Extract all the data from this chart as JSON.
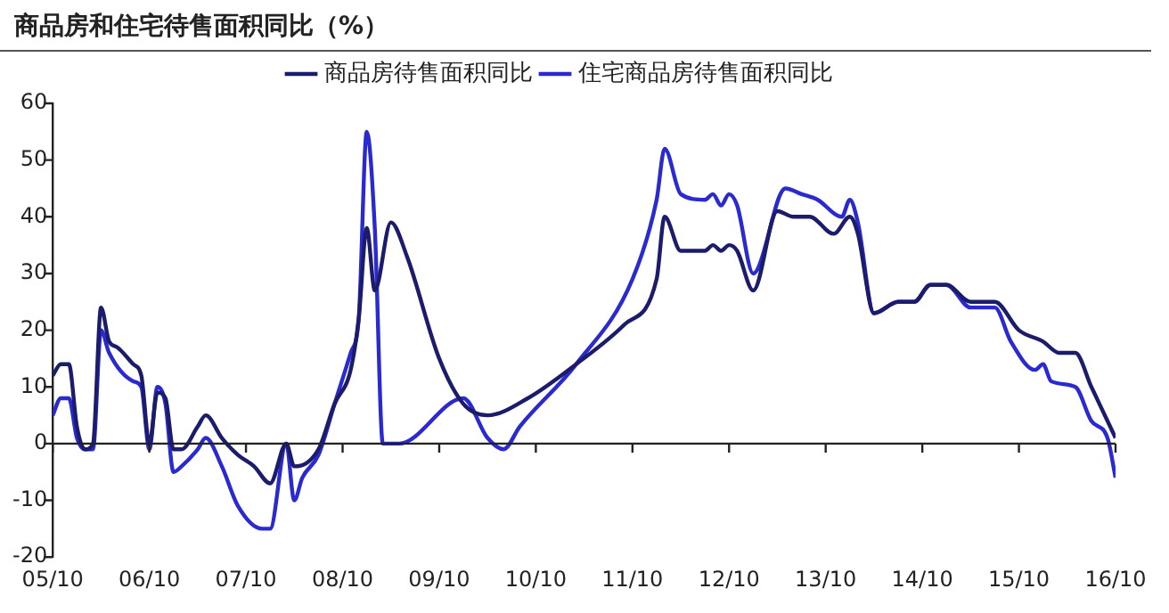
{
  "chart_data": {
    "type": "line",
    "title": "商品房和住宅待售面积同比（%）",
    "xlim": [
      "2005-10",
      "2016-10"
    ],
    "xticks": [
      {
        "value": "2005-10",
        "label": "05/10"
      },
      {
        "value": "2006-10",
        "label": "06/10"
      },
      {
        "value": "2007-10",
        "label": "07/10"
      },
      {
        "value": "2008-10",
        "label": "08/10"
      },
      {
        "value": "2009-10",
        "label": "09/10"
      },
      {
        "value": "2010-10",
        "label": "10/10"
      },
      {
        "value": "2011-10",
        "label": "11/10"
      },
      {
        "value": "2012-10",
        "label": "12/10"
      },
      {
        "value": "2013-10",
        "label": "13/10"
      },
      {
        "value": "2014-10",
        "label": "14/10"
      },
      {
        "value": "2015-10",
        "label": "15/10"
      },
      {
        "value": "2016-10",
        "label": "16/10"
      }
    ],
    "ylim": [
      -20,
      60
    ],
    "yticks": [
      -20,
      -10,
      0,
      10,
      20,
      30,
      40,
      50,
      60
    ],
    "grid": false,
    "ref_lines": [
      {
        "axis": "y",
        "value": 0,
        "color": "#222222",
        "line_style": "solid"
      }
    ],
    "legend": "top",
    "marker": "none",
    "line_style": "solid",
    "series": [
      {
        "name": "商品房待售面积同比",
        "color": "#1c1c6c",
        "x": [
          "2005-10",
          "2005-11",
          "2005-12",
          "2006-01",
          "2006-02",
          "2006-03",
          "2006-04",
          "2006-05",
          "2006-06",
          "2006-08",
          "2006-09",
          "2006-10",
          "2006-11",
          "2006-12",
          "2007-01",
          "2007-02",
          "2007-04",
          "2007-05",
          "2007-07",
          "2007-09",
          "2007-11",
          "2008-01",
          "2008-03",
          "2008-04",
          "2008-07",
          "2008-09",
          "2008-11",
          "2008-12",
          "2009-01",
          "2009-02",
          "2009-04",
          "2009-06",
          "2009-10",
          "2010-01",
          "2010-04",
          "2010-09",
          "2011-03",
          "2011-09",
          "2012-01",
          "2012-02",
          "2012-04",
          "2012-07",
          "2012-08",
          "2012-09",
          "2012-10",
          "2012-11",
          "2013-01",
          "2013-04",
          "2013-06",
          "2013-08",
          "2013-11",
          "2014-01",
          "2014-02",
          "2014-04",
          "2014-07",
          "2014-09",
          "2014-11",
          "2015-01",
          "2015-04",
          "2015-07",
          "2015-10",
          "2016-01",
          "2016-03",
          "2016-05",
          "2016-07",
          "2016-08",
          "2016-10"
        ],
        "values": [
          12,
          14,
          14,
          3,
          -1,
          0,
          24,
          18,
          17,
          14,
          12,
          0,
          9,
          8,
          -1,
          -1,
          3,
          5,
          1,
          -2,
          -4,
          -7,
          0,
          -4,
          -1,
          7,
          13,
          22,
          38,
          27,
          39,
          33,
          15,
          7,
          5,
          8,
          14,
          21,
          29,
          40,
          34,
          34,
          35,
          34,
          35,
          34,
          27,
          41,
          40,
          40,
          37,
          40,
          37,
          23,
          25,
          25,
          28,
          28,
          25,
          25,
          20,
          18,
          16,
          16,
          10,
          7,
          1
        ]
      },
      {
        "name": "住宅商品房待售面积同比",
        "color": "#2a2ad0",
        "x": [
          "2005-10",
          "2005-11",
          "2005-12",
          "2006-01",
          "2006-02",
          "2006-03",
          "2006-04",
          "2006-05",
          "2006-08",
          "2006-09",
          "2006-10",
          "2006-11",
          "2006-12",
          "2007-01",
          "2007-02",
          "2007-04",
          "2007-05",
          "2007-07",
          "2007-09",
          "2007-12",
          "2008-01",
          "2008-03",
          "2008-04",
          "2008-05",
          "2008-07",
          "2008-09",
          "2008-11",
          "2008-12",
          "2009-01",
          "2009-02",
          "2009-03",
          "2009-05",
          "2010-01",
          "2010-04",
          "2010-06",
          "2010-08",
          "2011-03",
          "2011-10",
          "2012-01",
          "2012-02",
          "2012-04",
          "2012-07",
          "2012-08",
          "2012-09",
          "2012-10",
          "2012-11",
          "2013-01",
          "2013-05",
          "2013-07",
          "2013-09",
          "2013-12",
          "2014-01",
          "2014-02",
          "2014-04",
          "2014-07",
          "2014-09",
          "2014-11",
          "2015-01",
          "2015-04",
          "2015-07",
          "2015-09",
          "2015-12",
          "2016-01",
          "2016-02",
          "2016-05",
          "2016-07",
          "2016-09",
          "2016-10"
        ],
        "values": [
          5,
          8,
          8,
          1,
          -1,
          -1,
          20,
          16,
          11,
          10,
          -1,
          10,
          7,
          -5,
          -4,
          -1,
          1,
          -4,
          -11,
          -15,
          -15,
          0,
          -10,
          -6,
          -2,
          7,
          16,
          22,
          55,
          38,
          0,
          0,
          8,
          1,
          -1,
          3,
          14,
          29,
          43,
          52,
          44,
          43,
          44,
          42,
          44,
          42,
          30,
          45,
          44,
          43,
          40,
          43,
          39,
          23,
          25,
          25,
          28,
          28,
          24,
          24,
          18,
          13,
          14,
          11,
          10,
          4,
          1,
          -6
        ]
      }
    ]
  }
}
